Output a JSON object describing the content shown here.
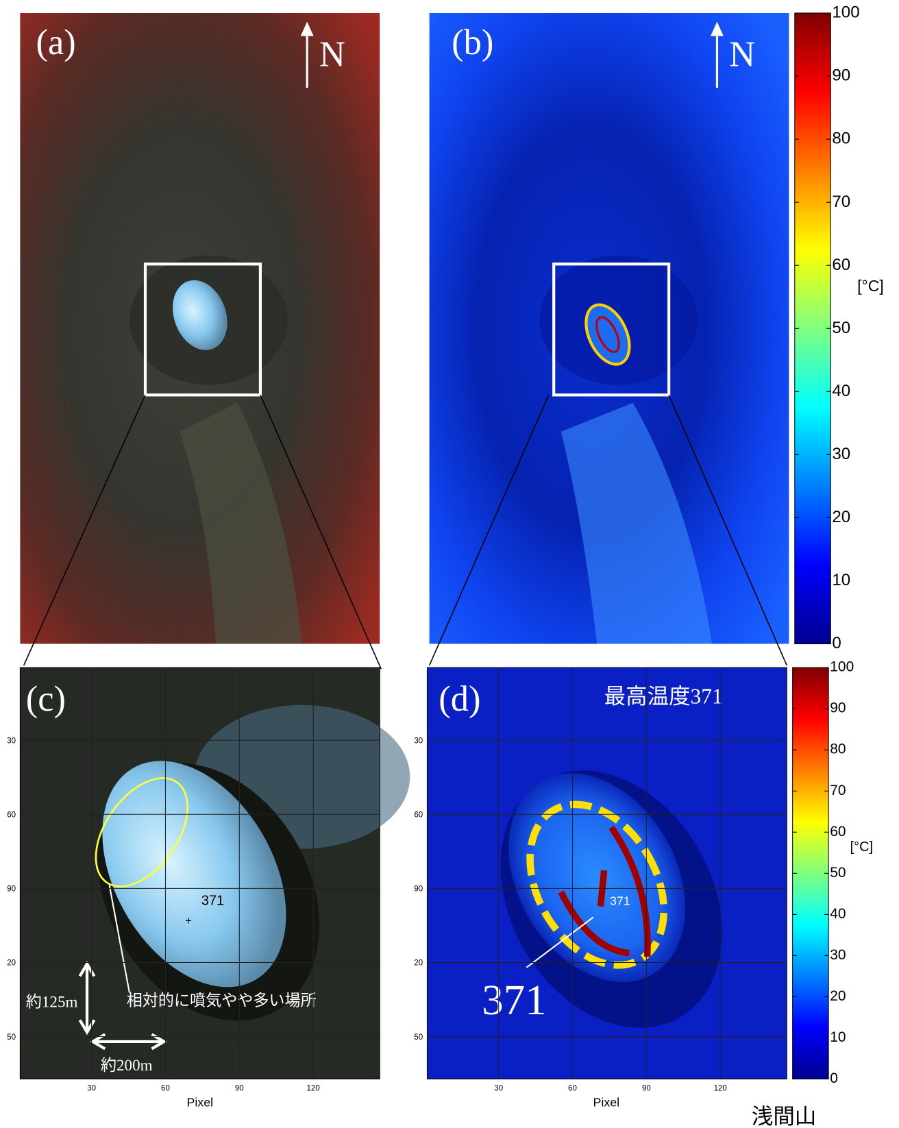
{
  "panels": [
    {
      "label": "(a)",
      "north": "N"
    },
    {
      "label": "(b)",
      "north": "N"
    },
    {
      "label": "(c)",
      "point_label": "371",
      "annotation": "相対的に噴気やや多い場所",
      "height_scale": "約125m",
      "width_scale": "約200m",
      "x_label": "Pixel"
    },
    {
      "label": "(d)",
      "max_temp": "最高温度371",
      "point_label": "371",
      "hot_label": "371",
      "x_label": "Pixel"
    }
  ],
  "pixel_axis": {
    "xlim": [
      1,
      147
    ],
    "xticks": [
      30,
      60,
      90,
      120
    ],
    "ytick_labels": [
      "30",
      "60",
      "90",
      "20",
      "50"
    ]
  },
  "colorbar": {
    "range": [
      0,
      100
    ],
    "ticks": [
      0,
      10,
      20,
      30,
      40,
      50,
      60,
      70,
      80,
      90,
      100
    ],
    "unit": "[°C]"
  },
  "location": "浅間山"
}
